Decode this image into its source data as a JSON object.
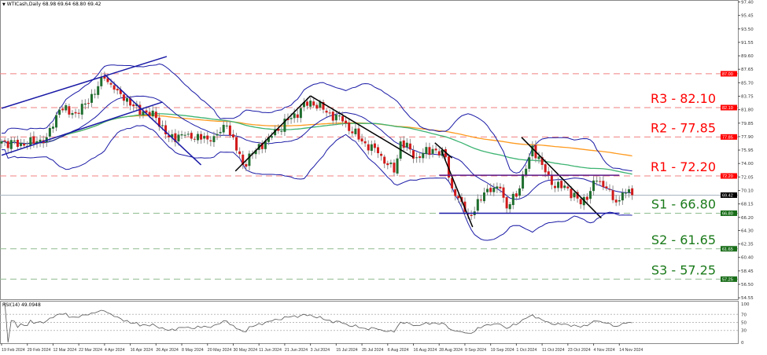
{
  "header": {
    "symbol_label": "WTICash,Daily",
    "ohlc": "68.98 69.64 68.80 69.42",
    "arrow_icon": "triangle-down-icon"
  },
  "colors": {
    "bull": "#1f6e2e",
    "bear": "#d11a1a",
    "resistance": "#ff0000",
    "support": "#1a7a1a",
    "bollinger": "#1a1aa6",
    "ma_fast": "#3cb371",
    "ma_slow": "#ff9a1f",
    "trend_black": "#000000",
    "trend_blue": "#1a1aa6",
    "range_top": "#5a1a8a"
  },
  "chart_data": [
    {
      "type": "candlestick",
      "title": "",
      "price_axis": {
        "ylim": [
          54.55,
          97.4
        ],
        "tick_labels": [
          "97.40",
          "95.45",
          "93.50",
          "91.55",
          "89.60",
          "87.65",
          "85.70",
          "83.75",
          "81.80",
          "79.85",
          "77.90",
          "75.95",
          "74.00",
          "72.05",
          "70.10",
          "68.15",
          "66.20",
          "64.30",
          "62.35",
          "60.40",
          "58.45",
          "56.50",
          "54.55"
        ]
      },
      "x_tick_labels": [
        "19 Feb 2024",
        "29 Feb 2024",
        "12 Mar 2024",
        "22 Mar 2024",
        "4 Apr 2024",
        "16 Apr 2024",
        "26 Apr 2024",
        "8 May 2024",
        "20 May 2024",
        "30 May 2024",
        "11 Jun 2024",
        "21 Jun 2024",
        "3 Jul 2024",
        "15 Jul 2024",
        "25 Jul 2024",
        "6 Aug 2024",
        "16 Aug 2024",
        "28 Aug 2024",
        "9 Sep 2024",
        "19 Sep 2024",
        "1 Oct 2024",
        "11 Oct 2024",
        "23 Oct 2024",
        "4 Nov 2024",
        "14 Nov 2024"
      ],
      "close_path": [
        [
          "19 Feb 2024",
          77.2
        ],
        [
          "28 Feb 2024",
          76.6
        ],
        [
          "9 Mar 2024",
          77.8
        ],
        [
          "15 Mar 2024",
          81.8
        ],
        [
          "22 Mar 2024",
          81.2
        ],
        [
          "1 Apr 2024",
          85.2
        ],
        [
          "4 Apr 2024",
          86.3
        ],
        [
          "10 Apr 2024",
          84.6
        ],
        [
          "17 Apr 2024",
          82.3
        ],
        [
          "26 Apr 2024",
          80.6
        ],
        [
          "2 May 2024",
          77.8
        ],
        [
          "11 May 2024",
          78.3
        ],
        [
          "21 May 2024",
          77.2
        ],
        [
          "27 May 2024",
          79.5
        ],
        [
          "3 Jun 2024",
          73.8
        ],
        [
          "8 Jun 2024",
          75.5
        ],
        [
          "15 Jun 2024",
          77.8
        ],
        [
          "24 Jun 2024",
          80.6
        ],
        [
          "3 Jul 2024",
          83.1
        ],
        [
          "9 Jul 2024",
          81.8
        ],
        [
          "18 Jul 2024",
          80.1
        ],
        [
          "25 Jul 2024",
          77.2
        ],
        [
          "1 Aug 2024",
          75.5
        ],
        [
          "8 Aug 2024",
          72.7
        ],
        [
          "11 Aug 2024",
          77.2
        ],
        [
          "17 Aug 2024",
          74.9
        ],
        [
          "25 Aug 2024",
          76.1
        ],
        [
          "31 Aug 2024",
          74.9
        ],
        [
          "3 Sep 2024",
          70.4
        ],
        [
          "9 Sep 2024",
          67.0
        ],
        [
          "11 Sep 2024",
          66.4
        ],
        [
          "17 Sep 2024",
          69.8
        ],
        [
          "24 Sep 2024",
          70.4
        ],
        [
          "27 Sep 2024",
          67.5
        ],
        [
          "2 Oct 2024",
          70.4
        ],
        [
          "6 Oct 2024",
          74.9
        ],
        [
          "7 Oct 2024",
          76.6
        ],
        [
          "11 Oct 2024",
          73.8
        ],
        [
          "15 Oct 2024",
          70.9
        ],
        [
          "23 Oct 2024",
          70.4
        ],
        [
          "29 Oct 2024",
          68.1
        ],
        [
          "5 Nov 2024",
          71.5
        ],
        [
          "9 Nov 2024",
          70.4
        ],
        [
          "11 Nov 2024",
          68.7
        ],
        [
          "15 Nov 2024",
          68.3
        ],
        [
          "16 Nov 2024",
          69.8
        ],
        [
          "19 Nov 2024",
          69.42
        ]
      ],
      "current_price": 69.42,
      "extra_level": 87.0,
      "levels": [
        {
          "label": "R3 - 82.10",
          "value": 82.1,
          "kind": "resistance",
          "tag": "82.10"
        },
        {
          "label": "R2 - 77.85",
          "value": 77.85,
          "kind": "resistance",
          "tag": "77.85"
        },
        {
          "label": "R1 - 72.20",
          "value": 72.2,
          "kind": "resistance",
          "tag": "72.20"
        },
        {
          "label": "S1 - 66.80",
          "value": 66.8,
          "kind": "support",
          "tag": "66.80"
        },
        {
          "label": "S2 - 61.65",
          "value": 61.65,
          "kind": "support",
          "tag": "61.65"
        },
        {
          "label": "S3 - 57.25",
          "value": 57.25,
          "kind": "support",
          "tag": "57.25"
        }
      ],
      "extra_level_tag": "87.00",
      "current_price_tag": "69.42",
      "trendlines": [
        {
          "color": "trend_blue",
          "from": [
            "19 Feb 2024",
            82.0
          ],
          "to": [
            "1 May 2024",
            89.5
          ]
        },
        {
          "color": "trend_blue",
          "from": [
            "19 Feb 2024",
            75.2
          ],
          "to": [
            "29 Apr 2024",
            82.9
          ]
        },
        {
          "color": "trend_blue",
          "from": [
            "4 Apr 2024",
            86.9
          ],
          "to": [
            "17 May 2024",
            73.8
          ]
        },
        {
          "color": "trend_black",
          "from": [
            "31 May 2024",
            72.9
          ],
          "to": [
            "3 Jul 2024",
            83.8
          ]
        },
        {
          "color": "trend_black",
          "from": [
            "3 Jul 2024",
            83.8
          ],
          "to": [
            "16 Aug 2024",
            74.9
          ]
        },
        {
          "color": "trend_black",
          "from": [
            "26 Aug 2024",
            77.0
          ],
          "to": [
            "3 Sep 2024",
            74.8
          ]
        },
        {
          "color": "trend_black",
          "from": [
            "29 Aug 2024",
            75.9
          ],
          "to": [
            "12 Sep 2024",
            64.8
          ]
        },
        {
          "color": "trend_black",
          "from": [
            "3 Oct 2024",
            77.8
          ],
          "to": [
            "7 Nov 2024",
            66.1
          ]
        },
        {
          "color": "range_top",
          "from": [
            "28 Aug 2024",
            72.3
          ],
          "to": [
            "14 Nov 2024",
            72.3
          ]
        },
        {
          "color": "trend_blue",
          "from": [
            "28 Aug 2024",
            66.8
          ],
          "to": [
            "14 Nov 2024",
            66.8
          ]
        }
      ],
      "indicators": [
        "Bollinger Bands (20,2)",
        "SMA 100",
        "SMA 200"
      ]
    },
    {
      "type": "line",
      "title": "RSI(14) 49.0948",
      "ylim": [
        0,
        100
      ],
      "tick_labels": [
        "100",
        "70",
        "50",
        "30",
        "0"
      ],
      "levels": [
        70,
        50,
        30
      ],
      "last_value": 49.0948
    }
  ]
}
